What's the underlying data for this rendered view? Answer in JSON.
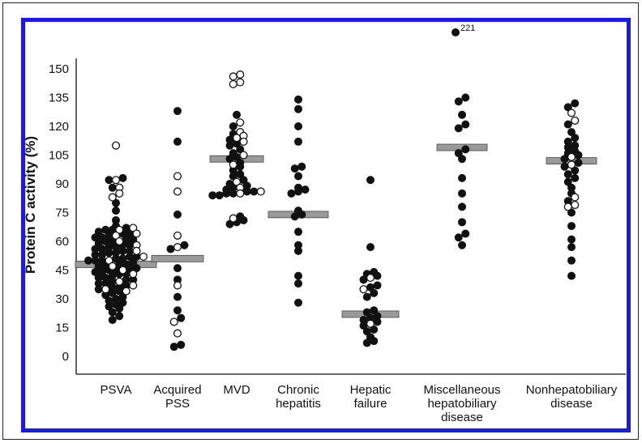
{
  "chart_data": {
    "type": "scatter",
    "title": "",
    "ylabel": "Protein C activity (%)",
    "xlabel": "",
    "ylim": [
      0,
      150
    ],
    "yticks": [
      0,
      15,
      30,
      45,
      60,
      75,
      90,
      105,
      120,
      135,
      150
    ],
    "grid": false,
    "legend": "none",
    "categories": [
      {
        "name": "PSVA",
        "lines": [
          "PSVA"
        ]
      },
      {
        "name": "Acquired PSS",
        "lines": [
          "Acquired",
          "PSS"
        ]
      },
      {
        "name": "MVD",
        "lines": [
          "MVD"
        ]
      },
      {
        "name": "Chronic hepatitis",
        "lines": [
          "Chronic",
          "hepatitis"
        ]
      },
      {
        "name": "Hepatic failure",
        "lines": [
          "Hepatic",
          "failure"
        ]
      },
      {
        "name": "Miscellaneous hepatobiliary disease",
        "lines": [
          "Miscellaneous",
          "hepatobiliary",
          "disease"
        ]
      },
      {
        "name": "Nonhepatobiliary disease",
        "lines": [
          "Nonhepatobiliary",
          "disease"
        ]
      }
    ],
    "medians": [
      48,
      51,
      103,
      74,
      22,
      109,
      102
    ],
    "annotations": [
      {
        "text": "221",
        "category": "Miscellaneous hepatobiliary disease",
        "y": 221
      }
    ],
    "groups": [
      {
        "name": "PSVA",
        "filled": [
          93,
          92,
          88,
          80,
          76,
          71,
          68,
          67,
          66,
          66,
          65,
          64,
          64,
          63,
          62,
          62,
          61,
          61,
          60,
          60,
          59,
          58,
          58,
          57,
          57,
          56,
          56,
          55,
          55,
          54,
          54,
          53,
          53,
          52,
          52,
          51,
          51,
          50,
          50,
          50,
          49,
          48,
          48,
          47,
          47,
          46,
          46,
          45,
          45,
          44,
          44,
          43,
          43,
          42,
          41,
          41,
          40,
          40,
          39,
          38,
          38,
          37,
          36,
          36,
          35,
          34,
          33,
          32,
          31,
          30,
          29,
          28,
          27,
          26,
          25,
          23,
          21,
          19
        ],
        "open": [
          110,
          92,
          88,
          85,
          83,
          67,
          66,
          64,
          63,
          60,
          58,
          55,
          52,
          50,
          47,
          45,
          43,
          39,
          37,
          35,
          34
        ]
      },
      {
        "name": "Acquired PSS",
        "filled": [
          128,
          112,
          74,
          58,
          56,
          46,
          40,
          31,
          24,
          20,
          6,
          5
        ],
        "open": [
          94,
          86,
          63,
          57,
          37,
          18,
          12
        ]
      },
      {
        "name": "MVD",
        "filled": [
          126,
          120,
          116,
          113,
          111,
          110,
          108,
          106,
          104,
          103,
          101,
          99,
          97,
          95,
          94,
          92,
          90,
          89,
          88,
          87,
          86,
          86,
          85,
          85,
          84,
          84,
          73,
          71,
          70,
          69
        ],
        "open": [
          147,
          146,
          143,
          142,
          122,
          117,
          115,
          114,
          112,
          105,
          100,
          91,
          88,
          86,
          85,
          72
        ]
      },
      {
        "name": "Chronic hepatitis",
        "filled": [
          134,
          129,
          120,
          112,
          99,
          98,
          94,
          88,
          87,
          86,
          85,
          76,
          74,
          73,
          65,
          58,
          55,
          42,
          38,
          28
        ],
        "open": []
      },
      {
        "name": "Hepatic failure",
        "filled": [
          92,
          57,
          44,
          43,
          42,
          40,
          37,
          36,
          33,
          31,
          24,
          23,
          21,
          20,
          19,
          18,
          16,
          14,
          13,
          10,
          8,
          7
        ],
        "open": [
          41,
          35,
          17
        ]
      },
      {
        "name": "Miscellaneous hepatobiliary disease",
        "filled": [
          221,
          135,
          133,
          126,
          121,
          119,
          108,
          106,
          103,
          93,
          85,
          78,
          70,
          64,
          62,
          58
        ],
        "open": []
      },
      {
        "name": "Nonhepatobiliary disease",
        "filled": [
          132,
          130,
          121,
          117,
          114,
          112,
          110,
          109,
          107,
          106,
          105,
          103,
          101,
          99,
          97,
          95,
          93,
          91,
          88,
          85,
          81,
          75,
          68,
          61,
          57,
          50,
          42
        ],
        "open": [
          127,
          123,
          104,
          100,
          83,
          79,
          78
        ]
      }
    ]
  }
}
